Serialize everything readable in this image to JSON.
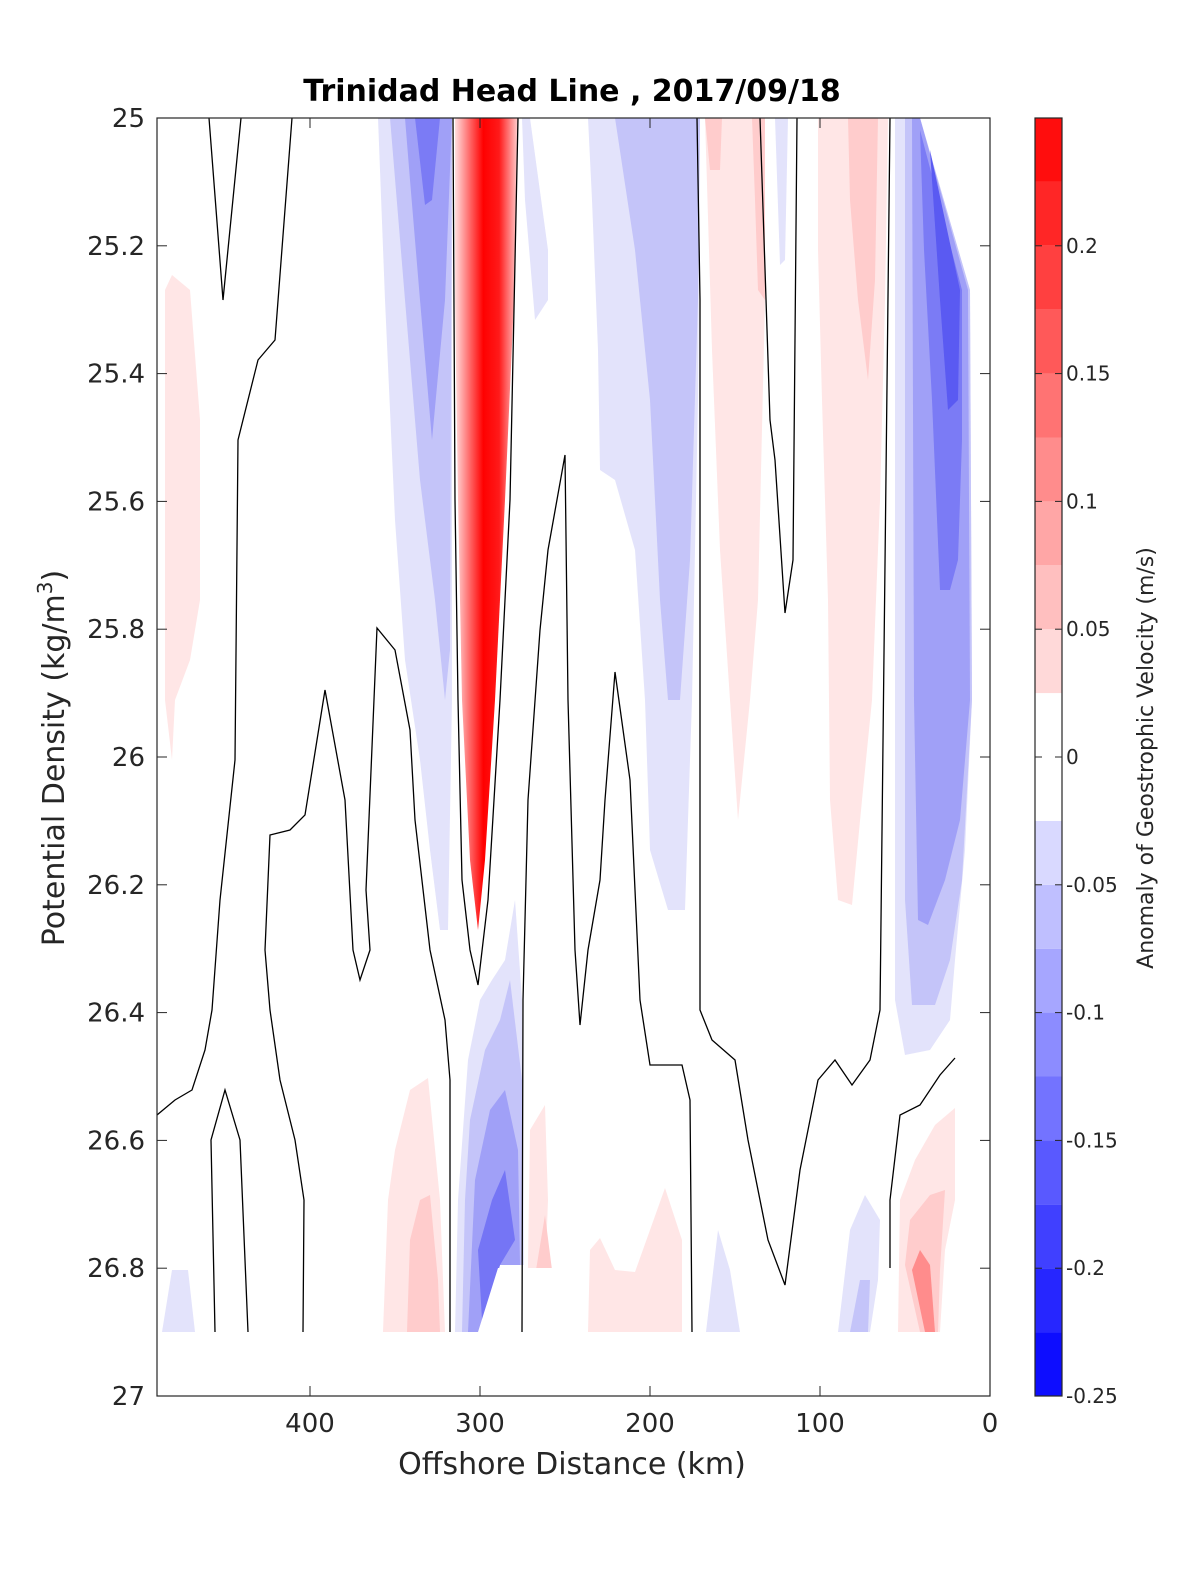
{
  "chart_data": {
    "type": "heatmap",
    "title": "Trinidad Head Line , 2017/09/18",
    "xlabel": "Offshore Distance (km)",
    "ylabel": "Potential Density (kg/m",
    "ylabel_sup": "3",
    "ylabel_tail": ")",
    "xlim": [
      490,
      0
    ],
    "ylim": [
      25,
      27
    ],
    "x_reversed": true,
    "y_reversed": true,
    "xticks": [
      "400",
      "300",
      "200",
      "100",
      "0"
    ],
    "xtick_values": [
      400,
      300,
      200,
      100,
      0
    ],
    "yticks": [
      "25",
      "25.2",
      "25.4",
      "25.6",
      "25.8",
      "26",
      "26.2",
      "26.4",
      "26.6",
      "26.8",
      "27"
    ],
    "ytick_values": [
      25,
      25.2,
      25.4,
      25.6,
      25.8,
      26,
      26.2,
      26.4,
      26.6,
      26.8,
      27
    ],
    "colorbar": {
      "label": "Anomaly of Geostrophic Velocity (m/s)",
      "range": [
        -0.25,
        0.25
      ],
      "levels": [
        -0.25,
        -0.225,
        -0.2,
        -0.175,
        -0.15,
        -0.125,
        -0.1,
        -0.075,
        -0.05,
        -0.025,
        0.025,
        0.05,
        0.075,
        0.1,
        0.125,
        0.15,
        0.175,
        0.2,
        0.225,
        0.25
      ],
      "ticks": [
        "0.2",
        "0.15",
        "0.1",
        "0.05",
        "0",
        "-0.05",
        "-0.1",
        "-0.15",
        "-0.2",
        "-0.25"
      ],
      "tick_values": [
        0.2,
        0.15,
        0.1,
        0.05,
        0,
        -0.05,
        -0.1,
        -0.15,
        -0.2,
        -0.25
      ]
    },
    "features": [
      {
        "name": "offshore-positive-strip",
        "x": [
          490,
          470
        ],
        "y": [
          25.25,
          26.0
        ],
        "value": 0.03
      },
      {
        "name": "negative-jet-west",
        "x": [
          370,
          315
        ],
        "y": [
          25.0,
          26.25
        ],
        "value": -0.11
      },
      {
        "name": "positive-jet-core",
        "x": [
          315,
          275
        ],
        "y": [
          25.0,
          26.25
        ],
        "value": 0.24
      },
      {
        "name": "negative-lens-deep",
        "x": [
          310,
          275
        ],
        "y": [
          26.35,
          26.9
        ],
        "value": -0.18
      },
      {
        "name": "weak-negative-mid",
        "x": [
          240,
          160
        ],
        "y": [
          25.0,
          26.2
        ],
        "value": -0.06
      },
      {
        "name": "positive-band-shelfbreak",
        "x": [
          165,
          130
        ],
        "y": [
          25.0,
          26.1
        ],
        "value": 0.04
      },
      {
        "name": "positive-band-slope",
        "x": [
          100,
          60
        ],
        "y": [
          25.0,
          26.2
        ],
        "value": 0.05
      },
      {
        "name": "negative-coastal-jet",
        "x": [
          60,
          10
        ],
        "y": [
          25.0,
          26.5
        ],
        "value": -0.15
      },
      {
        "name": "deep-positive-patches",
        "x": [
          350,
          40
        ],
        "y": [
          26.55,
          26.9
        ],
        "value": 0.06
      },
      {
        "name": "deep-negative-patches",
        "x": [
          490,
          60
        ],
        "y": [
          26.7,
          26.9
        ],
        "value": -0.04
      }
    ]
  }
}
